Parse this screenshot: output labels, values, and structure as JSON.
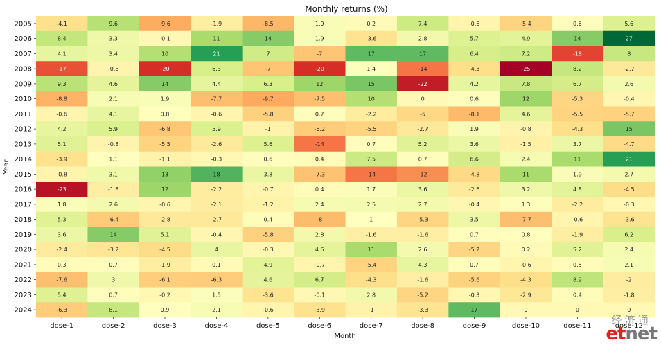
{
  "chart_data": {
    "type": "heatmap",
    "title": "Monthly returns (%)",
    "xlabel": "Month",
    "ylabel": "Year",
    "x": [
      "dose-1",
      "dose-2",
      "dose-3",
      "dose-4",
      "dose-5",
      "dose-6",
      "dose-7",
      "dose-8",
      "dose-9",
      "dose-10",
      "dose-11",
      "dose-12"
    ],
    "y": [
      "2005",
      "2006",
      "2007",
      "2008",
      "2009",
      "2010",
      "2011",
      "2012",
      "2013",
      "2014",
      "2015",
      "2016",
      "2017",
      "2018",
      "2019",
      "2020",
      "2021",
      "2022",
      "2023",
      "2024"
    ],
    "values": [
      [
        "-4.1",
        "9.6",
        "-9.6",
        "-1.9",
        "-8.5",
        "1.9",
        "0.2",
        "7.4",
        "-0.6",
        "-5.4",
        "0.6",
        "5.6"
      ],
      [
        "8.4",
        "3.3",
        "-0.1",
        "11",
        "14",
        "1.9",
        "-3.6",
        "2.8",
        "5.7",
        "4.9",
        "14",
        "27"
      ],
      [
        "4.1",
        "3.4",
        "10",
        "21",
        "7",
        "-7",
        "17",
        "17",
        "6.4",
        "7.2",
        "-18",
        "8"
      ],
      [
        "-17",
        "-0.8",
        "-20",
        "6.3",
        "-7",
        "-20",
        "1.4",
        "-14",
        "-4.3",
        "-25",
        "8.2",
        "-2.7"
      ],
      [
        "9.3",
        "4.6",
        "14",
        "4.4",
        "6.3",
        "12",
        "15",
        "-22",
        "4.2",
        "7.8",
        "6.7",
        "2.6"
      ],
      [
        "-8.8",
        "2.1",
        "1.9",
        "-7.7",
        "-9.7",
        "-7.5",
        "10",
        "0",
        "0.6",
        "12",
        "-5.3",
        "-0.4"
      ],
      [
        "-0.6",
        "4.1",
        "0.8",
        "-0.6",
        "-5.8",
        "0.7",
        "-2.2",
        "-5",
        "-8.1",
        "4.6",
        "-5.5",
        "-5.7"
      ],
      [
        "4.2",
        "5.9",
        "-6.8",
        "5.9",
        "-1",
        "-6.2",
        "-5.5",
        "-2.7",
        "1.9",
        "-0.8",
        "-4.3",
        "15"
      ],
      [
        "5.1",
        "-0.8",
        "-5.5",
        "-2.6",
        "5.6",
        "-14",
        "0.7",
        "5.2",
        "3.6",
        "-1.5",
        "3.7",
        "-4.7"
      ],
      [
        "-3.9",
        "1.1",
        "-1.1",
        "-0.3",
        "0.6",
        "0.4",
        "7.5",
        "0.7",
        "6.6",
        "2.4",
        "11",
        "21"
      ],
      [
        "-0.8",
        "3.1",
        "13",
        "18",
        "3.8",
        "-7.3",
        "-14",
        "-12",
        "-4.8",
        "11",
        "1.9",
        "2.7"
      ],
      [
        "-23",
        "-1.8",
        "12",
        "-2.2",
        "-0.7",
        "0.4",
        "1.7",
        "3.6",
        "-2.6",
        "3.2",
        "4.8",
        "-4.5"
      ],
      [
        "1.8",
        "2.6",
        "-0.6",
        "-2.1",
        "-1.2",
        "2.4",
        "2.5",
        "2.7",
        "-0.4",
        "1.3",
        "-2.2",
        "-0.3"
      ],
      [
        "5.3",
        "-6.4",
        "-2.8",
        "-2.7",
        "0.4",
        "-8",
        "1",
        "-5.3",
        "3.5",
        "-7.7",
        "-0.6",
        "-3.6"
      ],
      [
        "3.6",
        "14",
        "5.1",
        "-0.4",
        "-5.8",
        "2.8",
        "-1.6",
        "-1.6",
        "0.7",
        "0.8",
        "-1.9",
        "6.2"
      ],
      [
        "-2.4",
        "-3.2",
        "-4.5",
        "4",
        "-0.3",
        "4.6",
        "11",
        "2.6",
        "-5.2",
        "0.2",
        "5.2",
        "2.4"
      ],
      [
        "0.3",
        "0.7",
        "-1.9",
        "0.1",
        "4.9",
        "-0.7",
        "-5.4",
        "4.3",
        "0.7",
        "-0.6",
        "0.5",
        "2.1"
      ],
      [
        "-7.6",
        "3",
        "-6.1",
        "-6.3",
        "4.6",
        "6.7",
        "-4.3",
        "-1.6",
        "-5.6",
        "-4.3",
        "8.9",
        "-2"
      ],
      [
        "5.4",
        "0.7",
        "-0.2",
        "1.5",
        "-3.6",
        "-0.1",
        "2.8",
        "-5.2",
        "-0.3",
        "-2.9",
        "0.4",
        "-1.8"
      ],
      [
        "-6.3",
        "8.1",
        "0.9",
        "2.1",
        "-0.6",
        "-3.9",
        "-1",
        "-3.3",
        "17",
        "0",
        "0",
        "0"
      ]
    ],
    "colormap": "RdYlGn",
    "vmin": -25,
    "vmax": 27,
    "grid": false,
    "legend": "none"
  },
  "watermark": {
    "chinese": "经济通",
    "brand_et": "et",
    "brand_net": "net"
  }
}
